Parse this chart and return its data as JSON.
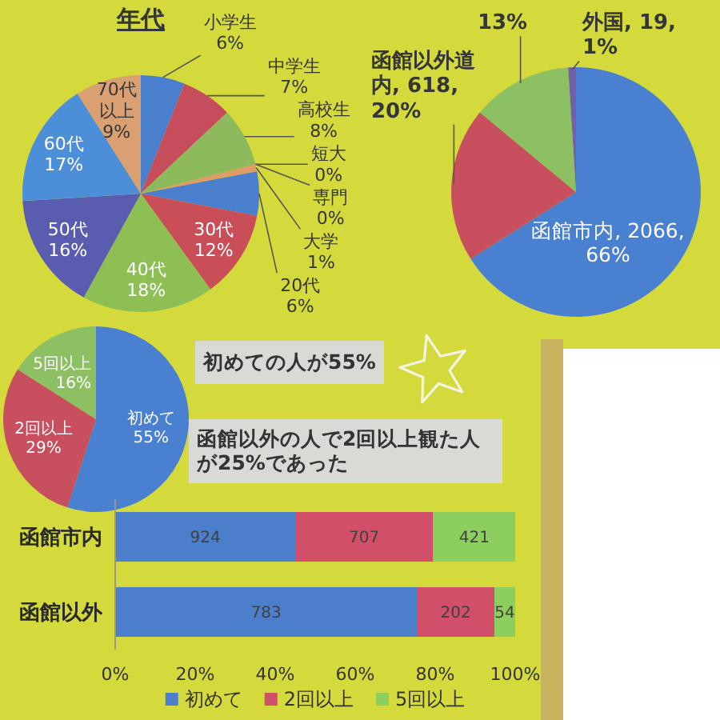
{
  "chart_data": [
    {
      "type": "pie",
      "title": "年代",
      "categories": [
        "小学生",
        "中学生",
        "高校生",
        "短大",
        "専門",
        "大学",
        "20代",
        "30代",
        "40代",
        "50代",
        "60代",
        "70代以上"
      ],
      "values": [
        6,
        7,
        8,
        0,
        0,
        1,
        6,
        12,
        18,
        16,
        17,
        9
      ],
      "value_labels": [
        "6%",
        "7%",
        "8%",
        "0%",
        "0%",
        "1%",
        "6%",
        "12%",
        "18%",
        "16%",
        "17%",
        "9%"
      ],
      "colors": [
        "#4a7fce",
        "#c64e5c",
        "#8eba5e",
        "#6a60ae",
        "#4ba6c8",
        "#df9c66",
        "#4a7fce",
        "#c94e58",
        "#8dbf55",
        "#5a5cb0",
        "#4d8ed8",
        "#dba072"
      ]
    },
    {
      "type": "pie",
      "categories": [
        "函館市内",
        "函館以外道内",
        null,
        "外国"
      ],
      "values": [
        66,
        20,
        13,
        1
      ],
      "value_labels": [
        "2066, 66%",
        "618, 20%",
        "13%",
        "19, 1%"
      ],
      "colors": [
        "#4a80d0",
        "#c8505e",
        "#8cc063",
        "#7460a8"
      ]
    },
    {
      "type": "pie",
      "categories": [
        "初めて",
        "2回以上",
        "5回以上"
      ],
      "values": [
        55,
        29,
        16
      ],
      "value_labels": [
        "55%",
        "29%",
        "16%"
      ],
      "colors": [
        "#4a80d0",
        "#c8505e",
        "#8cc063"
      ],
      "annotations": [
        "初めての人が55%"
      ]
    },
    {
      "type": "bar",
      "orientation": "horizontal",
      "stacked": true,
      "categories": [
        "函館市内",
        "函館以外"
      ],
      "series": [
        {
          "name": "初めて",
          "color": "#4b7fcc",
          "values": [
            45,
            75.4
          ]
        },
        {
          "name": "2回以上",
          "color": "#d14f68",
          "values": [
            34.5,
            19.4
          ]
        },
        {
          "name": "5回以上",
          "color": "#8dcf5e",
          "values": [
            20.5,
            5.2
          ]
        }
      ],
      "xlim": [
        0,
        100
      ],
      "xticks": [
        {
          "value": 0,
          "label": "0%"
        },
        {
          "value": 20,
          "label": "20%"
        },
        {
          "value": 40,
          "label": "40%"
        },
        {
          "value": 60,
          "label": "60%"
        },
        {
          "value": 80,
          "label": "80%"
        },
        {
          "value": 100,
          "label": "100%"
        }
      ],
      "legend": "bottom",
      "annotations": [
        "函館以外の人で2回以上観た人が25%であった",
        "924",
        "707",
        "421",
        "783",
        "202",
        "54"
      ]
    }
  ]
}
